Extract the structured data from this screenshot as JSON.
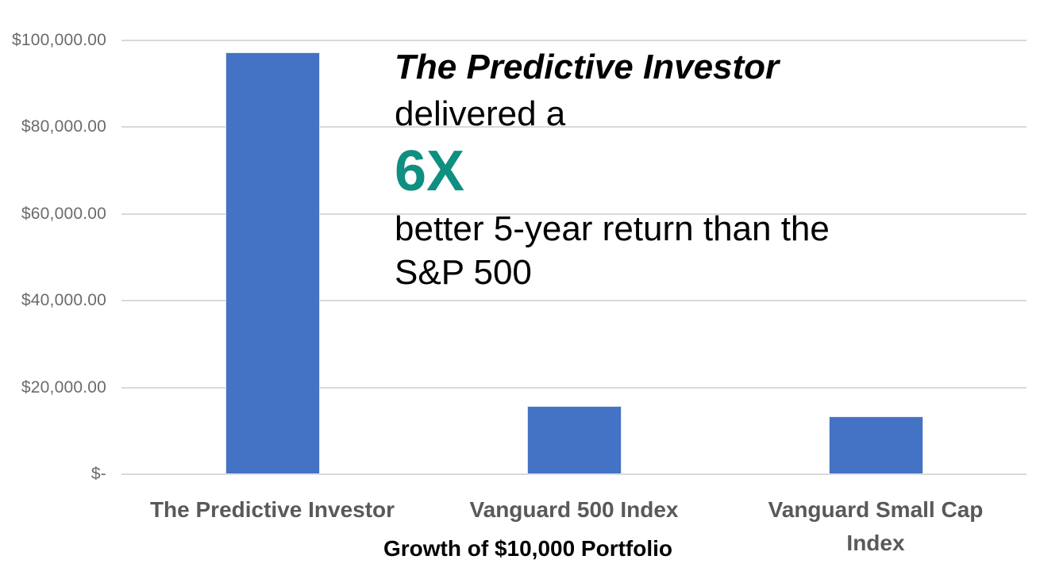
{
  "chart_data": {
    "type": "bar",
    "title": "",
    "xlabel": "Growth of $10,000 Portfolio",
    "ylabel": "",
    "ylim": [
      0,
      100000
    ],
    "grid": true,
    "legend": "none",
    "categories": [
      "The Predictive Investor",
      "Vanguard 500 Index",
      "Vanguard Small Cap Index"
    ],
    "category_label_lines": [
      [
        "The Predictive Investor"
      ],
      [
        "Vanguard 500 Index"
      ],
      [
        "Vanguard Small Cap",
        "Index"
      ]
    ],
    "values": [
      97300,
      15700,
      13300
    ],
    "y_ticks": [
      {
        "value": 100000,
        "label": "$100,000.00"
      },
      {
        "value": 80000,
        "label": "$80,000.00"
      },
      {
        "value": 60000,
        "label": "$60,000.00"
      },
      {
        "value": 40000,
        "label": "$40,000.00"
      },
      {
        "value": 20000,
        "label": "$20,000.00"
      },
      {
        "value": 0,
        "label": "$-"
      }
    ],
    "bar_color": "#4472C4",
    "gridline_color": "#D9D9D9",
    "tick_label_color": "#6B6B6B",
    "category_label_color": "#595959"
  },
  "annotation": {
    "line1": "The Predictive Investor",
    "line2": "delivered a",
    "highlight": "6X",
    "highlight_color": "#0E8F80",
    "line3": "better 5-year return than the",
    "line4": "S&P 500"
  }
}
